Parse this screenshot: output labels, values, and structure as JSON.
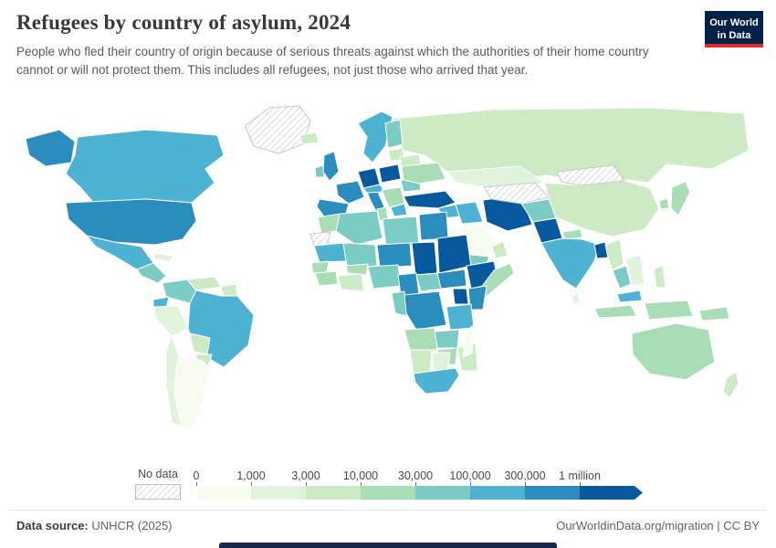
{
  "header": {
    "title": "Refugees by country of asylum, 2024",
    "subtitle": "People who fled their country of origin because of serious threats against which the authorities of their home country cannot or will not protect them. This includes all refugees, not just those who arrived that year.",
    "logo": {
      "line1": "Our World",
      "line2": "in Data"
    }
  },
  "legend": {
    "no_data_label": "No data",
    "ticks": [
      "0",
      "1,000",
      "3,000",
      "10,000",
      "30,000",
      "100,000",
      "300,000",
      "1 million"
    ]
  },
  "footer": {
    "source_label": "Data source:",
    "source_value": "UNHCR (2025)",
    "credit": "OurWorldinData.org/migration | CC BY"
  },
  "colors": {
    "logo_bg": "#002147",
    "logo_red": "#d93025",
    "bottom_bar": "#16294a",
    "hatch_stroke": "#c9c9c9"
  },
  "chart_data": {
    "type": "heatmap",
    "subtype": "choropleth-world-map",
    "title": "Refugees by country of asylum, 2024",
    "unit": "refugees",
    "legend_position": "bottom",
    "bins": [
      "0–1,000",
      "1,000–3,000",
      "3,000–10,000",
      "10,000–30,000",
      "30,000–100,000",
      "100,000–300,000",
      "300,000–1 million",
      "1 million+"
    ],
    "bin_colors": [
      "#f7fcf0",
      "#e0f3db",
      "#ccebc5",
      "#a8ddb5",
      "#7bccc4",
      "#4eb3d3",
      "#2b8cbe",
      "#08589e"
    ],
    "no_data_style": "gray-diagonal-hatch",
    "regions": [
      {
        "key": "greenland",
        "name": "Greenland",
        "bin": "no-data"
      },
      {
        "key": "russia",
        "name": "Russia",
        "bin": 2
      },
      {
        "key": "canada",
        "name": "Canada",
        "bin": 5
      },
      {
        "key": "alaska",
        "name": "Alaska (United States)",
        "bin": 6
      },
      {
        "key": "usa",
        "name": "United States",
        "bin": 6
      },
      {
        "key": "mexico",
        "name": "Mexico",
        "bin": 5
      },
      {
        "key": "central-america",
        "name": "Central America",
        "bin": 4
      },
      {
        "key": "cuba",
        "name": "Cuba",
        "bin": 1
      },
      {
        "key": "colombia",
        "name": "Colombia",
        "bin": 4
      },
      {
        "key": "venezuela",
        "name": "Venezuela",
        "bin": 2
      },
      {
        "key": "guyanas",
        "name": "Guyana & Suriname",
        "bin": 2
      },
      {
        "key": "ecuador",
        "name": "Ecuador",
        "bin": 5
      },
      {
        "key": "peru",
        "name": "Peru",
        "bin": 1
      },
      {
        "key": "brazil",
        "name": "Brazil",
        "bin": 5
      },
      {
        "key": "bolivia",
        "name": "Bolivia",
        "bin": 2
      },
      {
        "key": "paraguay",
        "name": "Paraguay",
        "bin": 2
      },
      {
        "key": "chile",
        "name": "Chile",
        "bin": 1
      },
      {
        "key": "argentina",
        "name": "Argentina",
        "bin": 0
      },
      {
        "key": "iceland",
        "name": "Iceland",
        "bin": 2
      },
      {
        "key": "ireland",
        "name": "Ireland",
        "bin": 4
      },
      {
        "key": "uk",
        "name": "United Kingdom",
        "bin": 6
      },
      {
        "key": "norway-sweden",
        "name": "Norway & Sweden",
        "bin": 5
      },
      {
        "key": "finland",
        "name": "Finland",
        "bin": 4
      },
      {
        "key": "baltics",
        "name": "Baltic states",
        "bin": 2
      },
      {
        "key": "belarus",
        "name": "Belarus",
        "bin": 2
      },
      {
        "key": "poland",
        "name": "Poland",
        "bin": 7
      },
      {
        "key": "germany",
        "name": "Germany",
        "bin": 7
      },
      {
        "key": "france",
        "name": "France",
        "bin": 6
      },
      {
        "key": "spain",
        "name": "Spain",
        "bin": 6
      },
      {
        "key": "italy",
        "name": "Italy",
        "bin": 6
      },
      {
        "key": "alpine",
        "name": "Switzerland & Austria",
        "bin": 5
      },
      {
        "key": "balkans",
        "name": "Balkans",
        "bin": 3
      },
      {
        "key": "romania",
        "name": "Romania",
        "bin": 4
      },
      {
        "key": "ukraine",
        "name": "Ukraine",
        "bin": 3
      },
      {
        "key": "greece",
        "name": "Greece",
        "bin": 5
      },
      {
        "key": "turkey",
        "name": "Turkey",
        "bin": 7
      },
      {
        "key": "syria",
        "name": "Syria",
        "bin": 5
      },
      {
        "key": "levant",
        "name": "Jordan & Israel",
        "bin": 6
      },
      {
        "key": "iraq",
        "name": "Iraq",
        "bin": 5
      },
      {
        "key": "iran",
        "name": "Iran",
        "bin": 7
      },
      {
        "key": "saudi-arabia",
        "name": "Saudi Arabia",
        "bin": 0
      },
      {
        "key": "yemen",
        "name": "Yemen",
        "bin": 4
      },
      {
        "key": "oman",
        "name": "Oman",
        "bin": 2
      },
      {
        "key": "kazakhstan",
        "name": "Kazakhstan",
        "bin": 1
      },
      {
        "key": "turkmenistan-uzbekistan",
        "name": "Turkmenistan & Uzbekistan",
        "bin": "no-data"
      },
      {
        "key": "china",
        "name": "China",
        "bin": 2
      },
      {
        "key": "mongolia",
        "name": "Mongolia",
        "bin": "no-data"
      },
      {
        "key": "afghanistan",
        "name": "Afghanistan",
        "bin": 4
      },
      {
        "key": "pakistan",
        "name": "Pakistan",
        "bin": 7
      },
      {
        "key": "nepal",
        "name": "Nepal",
        "bin": 3
      },
      {
        "key": "india",
        "name": "India",
        "bin": 5
      },
      {
        "key": "bangladesh",
        "name": "Bangladesh",
        "bin": 7
      },
      {
        "key": "sri-lanka",
        "name": "Sri Lanka",
        "bin": 1
      },
      {
        "key": "myanmar",
        "name": "Myanmar",
        "bin": 2
      },
      {
        "key": "thailand",
        "name": "Thailand",
        "bin": 4
      },
      {
        "key": "vietnam",
        "name": "Vietnam & Laos",
        "bin": 1
      },
      {
        "key": "malaysia",
        "name": "Malaysia",
        "bin": 5
      },
      {
        "key": "indonesia",
        "name": "Indonesia",
        "bin": 3
      },
      {
        "key": "philippines",
        "name": "Philippines",
        "bin": 2
      },
      {
        "key": "japan",
        "name": "Japan",
        "bin": 3
      },
      {
        "key": "south-korea",
        "name": "South Korea",
        "bin": 3
      },
      {
        "key": "papua-new-guinea",
        "name": "Papua New Guinea",
        "bin": 3
      },
      {
        "key": "australia",
        "name": "Australia",
        "bin": 3
      },
      {
        "key": "new-zealand",
        "name": "New Zealand",
        "bin": 2
      },
      {
        "key": "morocco",
        "name": "Morocco",
        "bin": 3
      },
      {
        "key": "western-sahara",
        "name": "Western Sahara",
        "bin": "no-data"
      },
      {
        "key": "algeria",
        "name": "Algeria",
        "bin": 4
      },
      {
        "key": "tunisia",
        "name": "Tunisia",
        "bin": 3
      },
      {
        "key": "libya",
        "name": "Libya",
        "bin": 4
      },
      {
        "key": "egypt",
        "name": "Egypt",
        "bin": 6
      },
      {
        "key": "mauritania",
        "name": "Mauritania",
        "bin": 5
      },
      {
        "key": "mali",
        "name": "Mali",
        "bin": 4
      },
      {
        "key": "niger",
        "name": "Niger",
        "bin": 6
      },
      {
        "key": "chad",
        "name": "Chad",
        "bin": 7
      },
      {
        "key": "sudan",
        "name": "Sudan",
        "bin": 7
      },
      {
        "key": "senegal",
        "name": "Senegal",
        "bin": 3
      },
      {
        "key": "guinea",
        "name": "Guinea",
        "bin": 3
      },
      {
        "key": "burkina-faso",
        "name": "Burkina Faso",
        "bin": 3
      },
      {
        "key": "ivory-coast-ghana",
        "name": "Côte d'Ivoire & Ghana",
        "bin": 2
      },
      {
        "key": "nigeria",
        "name": "Nigeria",
        "bin": 4
      },
      {
        "key": "cameroon",
        "name": "Cameroon",
        "bin": 6
      },
      {
        "key": "central-african-republic",
        "name": "Central African Republic",
        "bin": 4
      },
      {
        "key": "south-sudan",
        "name": "South Sudan",
        "bin": 6
      },
      {
        "key": "ethiopia",
        "name": "Ethiopia",
        "bin": 7
      },
      {
        "key": "somalia",
        "name": "Somalia",
        "bin": 3
      },
      {
        "key": "uganda",
        "name": "Uganda",
        "bin": 7
      },
      {
        "key": "kenya",
        "name": "Kenya",
        "bin": 6
      },
      {
        "key": "congo-gabon",
        "name": "Congo & Gabon",
        "bin": 4
      },
      {
        "key": "drc",
        "name": "Democratic Republic of Congo",
        "bin": 6
      },
      {
        "key": "tanzania",
        "name": "Tanzania",
        "bin": 5
      },
      {
        "key": "angola",
        "name": "Angola",
        "bin": 3
      },
      {
        "key": "zambia",
        "name": "Zambia",
        "bin": 4
      },
      {
        "key": "zimbabwe",
        "name": "Zimbabwe",
        "bin": 3
      },
      {
        "key": "mozambique",
        "name": "Mozambique",
        "bin": 2
      },
      {
        "key": "namibia",
        "name": "Namibia",
        "bin": 2
      },
      {
        "key": "botswana",
        "name": "Botswana",
        "bin": 1
      },
      {
        "key": "south-africa",
        "name": "South Africa",
        "bin": 5
      },
      {
        "key": "madagascar",
        "name": "Madagascar",
        "bin": 0
      }
    ]
  }
}
